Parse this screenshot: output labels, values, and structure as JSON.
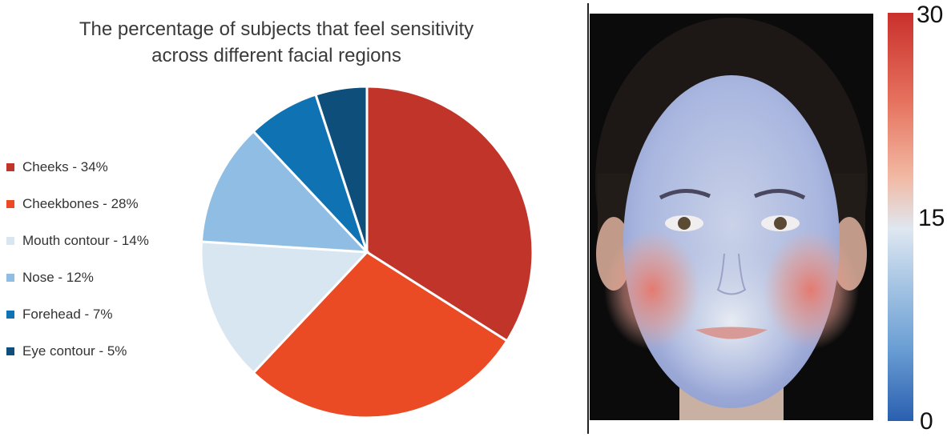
{
  "chart_data": {
    "type": "pie",
    "title_lines": [
      "The percentage of subjects that feel sensitivity",
      "across different facial regions"
    ],
    "categories": [
      "Cheeks",
      "Cheekbones",
      "Mouth contour",
      "Nose",
      "Forehead",
      "Eye contour"
    ],
    "values": [
      34,
      28,
      14,
      12,
      7,
      5
    ],
    "legend_labels": [
      "Cheeks - 34%",
      "Cheekbones - 28%",
      "Mouth contour - 14%",
      "Nose - 12%",
      "Forehead - 7%",
      "Eye contour - 5%"
    ],
    "colors": [
      "#c0342a",
      "#ea4a24",
      "#d8e6f2",
      "#8fbde3",
      "#0f72b3",
      "#0d4e7a"
    ],
    "legend_position": "left"
  },
  "heatmap": {
    "colorbar_labels": {
      "max": "30",
      "mid": "15",
      "min": "0"
    },
    "colorbar_colors": [
      "#c9302c",
      "#f2b8a2",
      "#dfe7f1",
      "#6b9fd4",
      "#2a5fb0"
    ]
  }
}
